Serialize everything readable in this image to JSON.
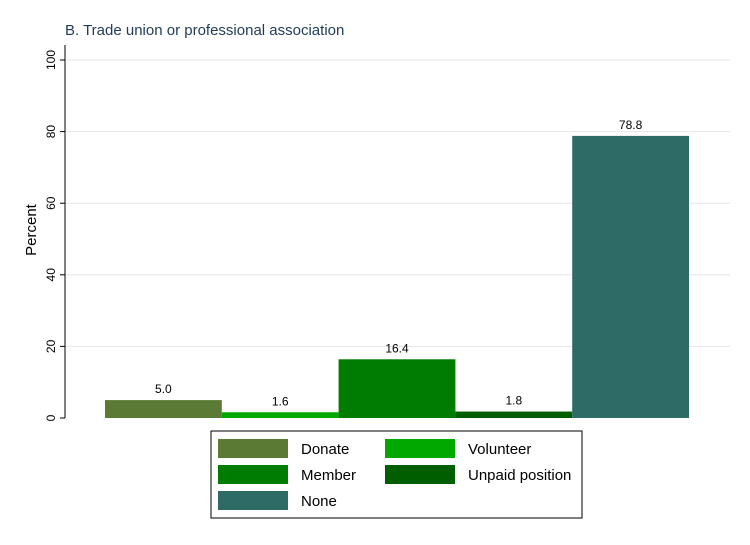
{
  "chart_data": {
    "type": "bar",
    "title": "B. Trade union or professional association",
    "ylabel": "Percent",
    "xlabel": "",
    "ylim": [
      0,
      100
    ],
    "yticks": [
      0,
      20,
      40,
      60,
      80,
      100
    ],
    "grid": true,
    "legend_position": "bottom",
    "series": [
      {
        "name": "Donate",
        "value": 5.0,
        "label": "5.0",
        "color": "#5b7a33"
      },
      {
        "name": "Volunteer",
        "value": 1.6,
        "label": "1.6",
        "color": "#00a800"
      },
      {
        "name": "Member",
        "value": 16.4,
        "label": "16.4",
        "color": "#007c00"
      },
      {
        "name": "Unpaid position",
        "value": 1.8,
        "label": "1.8",
        "color": "#005e00"
      },
      {
        "name": "None",
        "value": 78.8,
        "label": "78.8",
        "color": "#2e6b66"
      }
    ]
  }
}
